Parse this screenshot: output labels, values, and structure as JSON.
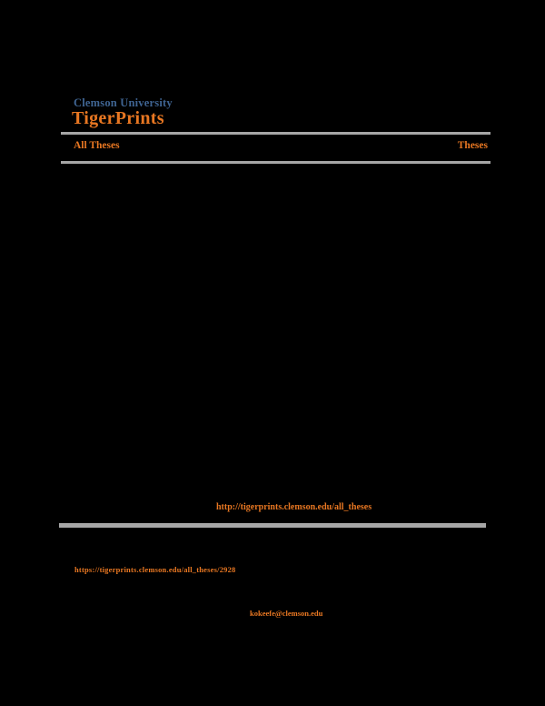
{
  "colors": {
    "orange": "#E87722",
    "blue": "#3F6492",
    "gray": "#A6A6A6",
    "bg": "#000000"
  },
  "header": {
    "university": "Clemson University",
    "site_title": "TigerPrints",
    "breadcrumb_left": "All Theses",
    "breadcrumb_right": "Theses"
  },
  "links": {
    "works_at_url": "http://tigerprints.clemson.edu/all_theses",
    "citation_url": "https://tigerprints.clemson.edu/all_theses/2928",
    "contact_email": "kokeefe@clemson.edu"
  }
}
